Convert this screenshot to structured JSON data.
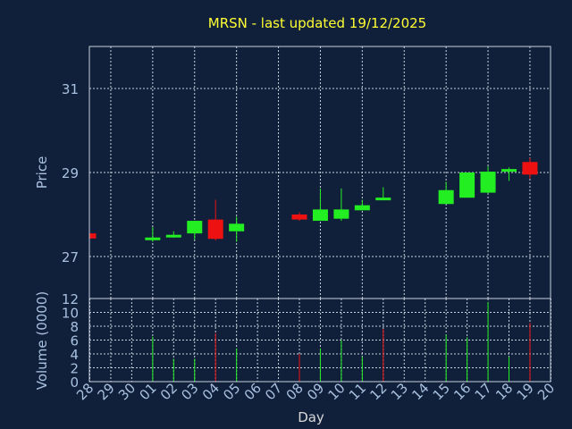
{
  "chart_data": {
    "type": "candlestick",
    "title": "MRSN - last updated 19/12/2025",
    "xlabel": "Day",
    "colors": {
      "up": "#22ee22",
      "down": "#ee1111",
      "background": "#11203a",
      "frame": "#c8d2de",
      "grid": "#c8d2de",
      "title": "#ffff33",
      "ticks": "#a8c1e0"
    },
    "categories": [
      "28",
      "29",
      "30",
      "01",
      "02",
      "03",
      "04",
      "05",
      "06",
      "07",
      "08",
      "09",
      "10",
      "11",
      "12",
      "13",
      "14",
      "15",
      "16",
      "17",
      "18",
      "19",
      "20"
    ],
    "price_panel": {
      "ylabel": "Price",
      "ylim": [
        26.0,
        32.0
      ],
      "yticks": [
        "27",
        "29",
        "31"
      ],
      "ytick_values": [
        27,
        29,
        31
      ],
      "grid": true,
      "candles": [
        {
          "x": "28",
          "open": 27.55,
          "close": 27.43,
          "high": 27.55,
          "low": 27.43
        },
        {
          "x": "01",
          "open": 27.39,
          "close": 27.45,
          "high": 27.7,
          "low": 27.35
        },
        {
          "x": "02",
          "open": 27.47,
          "close": 27.5,
          "high": 27.6,
          "low": 27.45
        },
        {
          "x": "03",
          "open": 27.55,
          "close": 27.85,
          "high": 27.85,
          "low": 27.4
        },
        {
          "x": "04",
          "open": 27.88,
          "close": 27.42,
          "high": 28.35,
          "low": 27.38
        },
        {
          "x": "05",
          "open": 27.6,
          "close": 27.78,
          "high": 27.95,
          "low": 27.35
        },
        {
          "x": "08",
          "open": 28.0,
          "close": 27.88,
          "high": 28.05,
          "low": 27.85
        },
        {
          "x": "09",
          "open": 27.85,
          "close": 28.12,
          "high": 28.62,
          "low": 27.85
        },
        {
          "x": "10",
          "open": 27.9,
          "close": 28.12,
          "high": 28.62,
          "low": 27.85
        },
        {
          "x": "11",
          "open": 28.1,
          "close": 28.22,
          "high": 28.35,
          "low": 28.1
        },
        {
          "x": "12",
          "open": 28.37,
          "close": 28.37,
          "high": 28.65,
          "low": 28.35
        },
        {
          "x": "15",
          "open": 28.25,
          "close": 28.58,
          "high": 28.78,
          "low": 28.25
        },
        {
          "x": "16",
          "open": 28.4,
          "close": 29.0,
          "high": 29.0,
          "low": 28.4
        },
        {
          "x": "17",
          "open": 28.52,
          "close": 29.02,
          "high": 29.15,
          "low": 28.5
        },
        {
          "x": "18",
          "open": 29.02,
          "close": 29.08,
          "high": 29.12,
          "low": 28.8
        },
        {
          "x": "19",
          "open": 29.25,
          "close": 28.95,
          "high": 29.35,
          "low": 28.85
        }
      ]
    },
    "volume_panel": {
      "ylabel": "Volume (0000)",
      "ylim": [
        0,
        12
      ],
      "yticks": [
        "0",
        "2",
        "4",
        "6",
        "8",
        "10",
        "12"
      ],
      "ytick_values": [
        0,
        2,
        4,
        6,
        8,
        10,
        12
      ],
      "grid": true,
      "bars": [
        {
          "x": "28",
          "value": 0.0,
          "dir": "down"
        },
        {
          "x": "01",
          "value": 6.5,
          "dir": "up"
        },
        {
          "x": "02",
          "value": 3.3,
          "dir": "up"
        },
        {
          "x": "03",
          "value": 3.3,
          "dir": "up"
        },
        {
          "x": "04",
          "value": 7.0,
          "dir": "down"
        },
        {
          "x": "05",
          "value": 4.8,
          "dir": "up"
        },
        {
          "x": "08",
          "value": 4.0,
          "dir": "down"
        },
        {
          "x": "09",
          "value": 4.8,
          "dir": "up"
        },
        {
          "x": "10",
          "value": 6.0,
          "dir": "up"
        },
        {
          "x": "11",
          "value": 3.6,
          "dir": "up"
        },
        {
          "x": "12",
          "value": 7.6,
          "dir": "down"
        },
        {
          "x": "15",
          "value": 6.8,
          "dir": "up"
        },
        {
          "x": "16",
          "value": 6.4,
          "dir": "up"
        },
        {
          "x": "17",
          "value": 11.5,
          "dir": "up"
        },
        {
          "x": "18",
          "value": 3.6,
          "dir": "up"
        },
        {
          "x": "19",
          "value": 8.5,
          "dir": "down"
        }
      ]
    }
  }
}
